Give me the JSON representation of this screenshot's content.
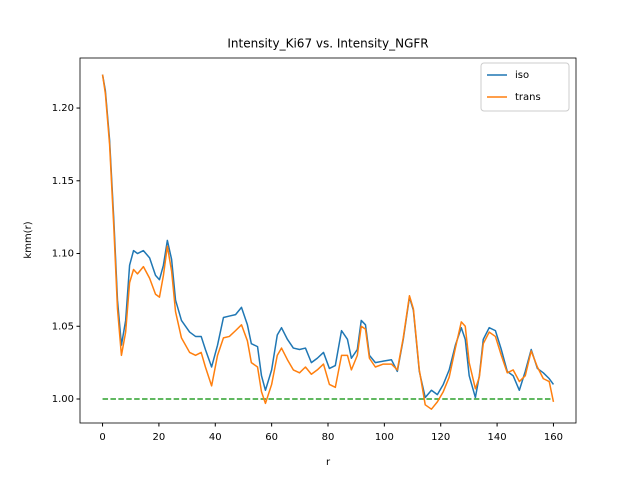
{
  "chart_data": {
    "type": "line",
    "title": "Intensity_Ki67 vs. Intensity_NGFR",
    "xlabel": "r",
    "ylabel": "kmm(r)",
    "x": [
      0,
      1,
      2.5,
      4,
      5.3,
      6.7,
      8.2,
      9.6,
      11,
      12.4,
      14.5,
      16.7,
      18.8,
      20.2,
      21.6,
      23,
      24.5,
      25.9,
      28,
      30.9,
      33,
      35,
      36.5,
      38.7,
      40.8,
      42.9,
      45,
      47.2,
      49.3,
      51.4,
      52.8,
      55,
      56.4,
      57.8,
      60,
      62,
      63.5,
      65.6,
      67.7,
      69.9,
      72,
      74.1,
      76.2,
      78.4,
      80.5,
      82.6,
      84.8,
      86.9,
      88.3,
      90.4,
      91.8,
      93.3,
      94.7,
      96.8,
      99.6,
      102.5,
      104.6,
      106.7,
      108.9,
      110.3,
      112.4,
      114.5,
      116.7,
      118.8,
      120.9,
      123,
      125.2,
      127.3,
      128.7,
      130.1,
      132.3,
      133.7,
      135.1,
      137.2,
      139.4,
      141.5,
      143.6,
      145.7,
      147.9,
      150,
      152.1,
      154.3,
      156.4,
      158.5,
      160
    ],
    "series": [
      {
        "name": "iso",
        "color": "#1f77b4",
        "values": [
          1.223,
          1.212,
          1.178,
          1.123,
          1.068,
          1.037,
          1.054,
          1.092,
          1.102,
          1.1,
          1.102,
          1.097,
          1.085,
          1.082,
          1.092,
          1.109,
          1.096,
          1.068,
          1.054,
          1.046,
          1.043,
          1.043,
          1.034,
          1.022,
          1.037,
          1.056,
          1.057,
          1.058,
          1.063,
          1.051,
          1.038,
          1.036,
          1.016,
          1.006,
          1.02,
          1.044,
          1.049,
          1.041,
          1.035,
          1.034,
          1.035,
          1.025,
          1.028,
          1.032,
          1.021,
          1.023,
          1.047,
          1.041,
          1.028,
          1.034,
          1.054,
          1.051,
          1.03,
          1.025,
          1.026,
          1.027,
          1.019,
          1.041,
          1.07,
          1.061,
          1.019,
          1.001,
          1.006,
          1.003,
          1.01,
          1.02,
          1.037,
          1.049,
          1.041,
          1.016,
          1.001,
          1.016,
          1.041,
          1.049,
          1.047,
          1.034,
          1.019,
          1.016,
          1.006,
          1.019,
          1.034,
          1.021,
          1.018,
          1.014,
          1.01
        ]
      },
      {
        "name": "trans",
        "color": "#ff7f0e",
        "values": [
          1.223,
          1.21,
          1.175,
          1.118,
          1.062,
          1.03,
          1.046,
          1.08,
          1.089,
          1.086,
          1.091,
          1.083,
          1.072,
          1.07,
          1.085,
          1.105,
          1.088,
          1.06,
          1.042,
          1.032,
          1.03,
          1.032,
          1.022,
          1.009,
          1.03,
          1.042,
          1.043,
          1.047,
          1.051,
          1.04,
          1.025,
          1.022,
          1.005,
          0.997,
          1.01,
          1.03,
          1.035,
          1.027,
          1.02,
          1.018,
          1.022,
          1.017,
          1.02,
          1.024,
          1.01,
          1.008,
          1.03,
          1.03,
          1.02,
          1.03,
          1.05,
          1.048,
          1.028,
          1.022,
          1.024,
          1.024,
          1.02,
          1.042,
          1.071,
          1.062,
          1.02,
          0.996,
          0.993,
          0.998,
          1.005,
          1.015,
          1.035,
          1.053,
          1.05,
          1.025,
          1.007,
          1.015,
          1.038,
          1.046,
          1.043,
          1.03,
          1.018,
          1.02,
          1.012,
          1.016,
          1.033,
          1.022,
          1.014,
          1.012,
          0.998
        ]
      }
    ],
    "reference_line": {
      "y": 1,
      "x": [
        0,
        160
      ],
      "color": "#2ca02c",
      "dashed": true
    },
    "xlim": [
      -8,
      168
    ],
    "ylim": [
      0.9835,
      1.2344
    ],
    "xticks": [
      0,
      20,
      40,
      60,
      80,
      100,
      120,
      140,
      160
    ],
    "yticks": [
      {
        "value": 1,
        "label": "1.00"
      },
      1.05,
      {
        "value": 1.1,
        "label": "1.10"
      },
      1.15,
      {
        "value": 1.2,
        "label": "1.20"
      }
    ],
    "legend": "upper right",
    "grid": false
  }
}
